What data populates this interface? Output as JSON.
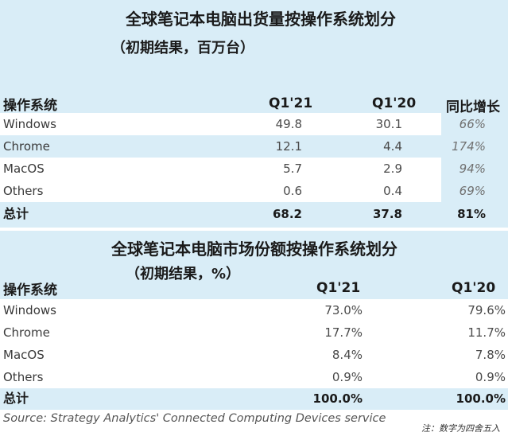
{
  "table1": {
    "title": "全球笔记本电脑出货量按操作系统划分",
    "subtitle": "（初期结果，百万台）",
    "headers": [
      "操作系统",
      "Q1'21",
      "Q1'20",
      "同比增长"
    ],
    "rows": [
      {
        "label": "Windows",
        "q121": "49.8",
        "q120": "30.1",
        "growth": "66%"
      },
      {
        "label": "Chrome",
        "q121": "12.1",
        "q120": "4.4",
        "growth": "174%"
      },
      {
        "label": "MacOS",
        "q121": "5.7",
        "q120": "2.9",
        "growth": "94%"
      },
      {
        "label": "Others",
        "q121": "0.6",
        "q120": "0.4",
        "growth": "69%"
      }
    ],
    "total": {
      "label": "总计",
      "q121": "68.2",
      "q120": "37.8",
      "growth": "81%"
    }
  },
  "table2": {
    "title": "全球笔记本电脑市场份额按操作系统划分",
    "subtitle": "（初期结果，%）",
    "headers": [
      "操作系统",
      "Q1'21",
      "Q1'20"
    ],
    "rows": [
      {
        "label": "Windows",
        "q121": "73.0%",
        "q120": "79.6%"
      },
      {
        "label": "Chrome",
        "q121": "17.7%",
        "q120": "11.7%"
      },
      {
        "label": "MacOS",
        "q121": "8.4%",
        "q120": "7.8%"
      },
      {
        "label": "Others",
        "q121": "0.9%",
        "q120": "0.9%"
      }
    ],
    "total": {
      "label": "总计",
      "q121": "100.0%",
      "q120": "100.0%"
    }
  },
  "source": "Source: Strategy Analytics' Connected Computing Devices service",
  "note": "注：数字为四舍五入",
  "colors": {
    "panel_bg": "#d9edf7",
    "row_bg": "#ffffff"
  }
}
